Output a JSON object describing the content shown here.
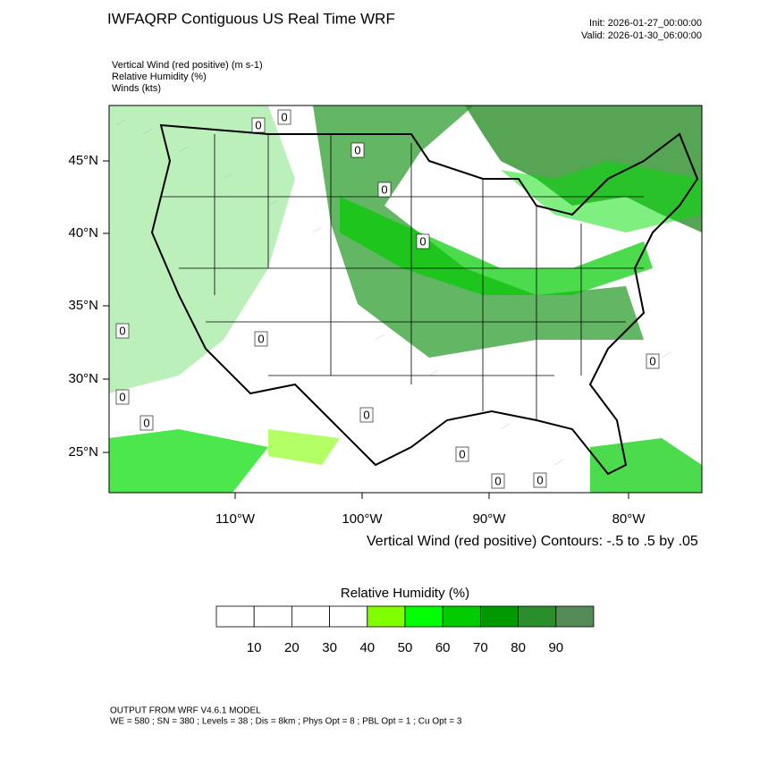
{
  "header": {
    "title": "IWFAQRP Contiguous US Real Time WRF",
    "init": "Init: 2026-01-27_00:00:00",
    "valid": "Valid: 2026-01-30_06:00:00"
  },
  "fields": [
    "Vertical Wind (red positive)   (m s-1)",
    "Relative Humidity   (%)",
    "Winds   (kts)"
  ],
  "map": {
    "lat_labels": [
      "45°N",
      "40°N",
      "35°N",
      "30°N",
      "25°N"
    ],
    "lon_labels": [
      "110°W",
      "100°W",
      "90°W",
      "80°W"
    ],
    "contour_labels": [
      "0",
      "0",
      "0",
      "0",
      "0",
      "0",
      "0",
      "0",
      "0",
      "0",
      "0",
      "0",
      "0",
      "0"
    ],
    "contour_note": "Vertical Wind (red positive) Contours: -.5 to .5 by .05"
  },
  "colorbar": {
    "title": "Relative Humidity  (%)",
    "labels": [
      "10",
      "20",
      "30",
      "40",
      "50",
      "60",
      "70",
      "80",
      "90"
    ],
    "colors": [
      "#ffffff",
      "#ffffff",
      "#ffffff",
      "#ffffff",
      "#80ff00",
      "#00ff00",
      "#00cc00",
      "#009900",
      "#2a8f2a",
      "#568a58"
    ]
  },
  "footer": {
    "line1": "OUTPUT FROM WRF V4.6.1 MODEL",
    "line2": "WE = 580 ; SN = 380 ; Levels = 38 ; Dis = 8km ; Phys Opt = 8 ; PBL Opt = 1 ; Cu Opt = 3"
  }
}
